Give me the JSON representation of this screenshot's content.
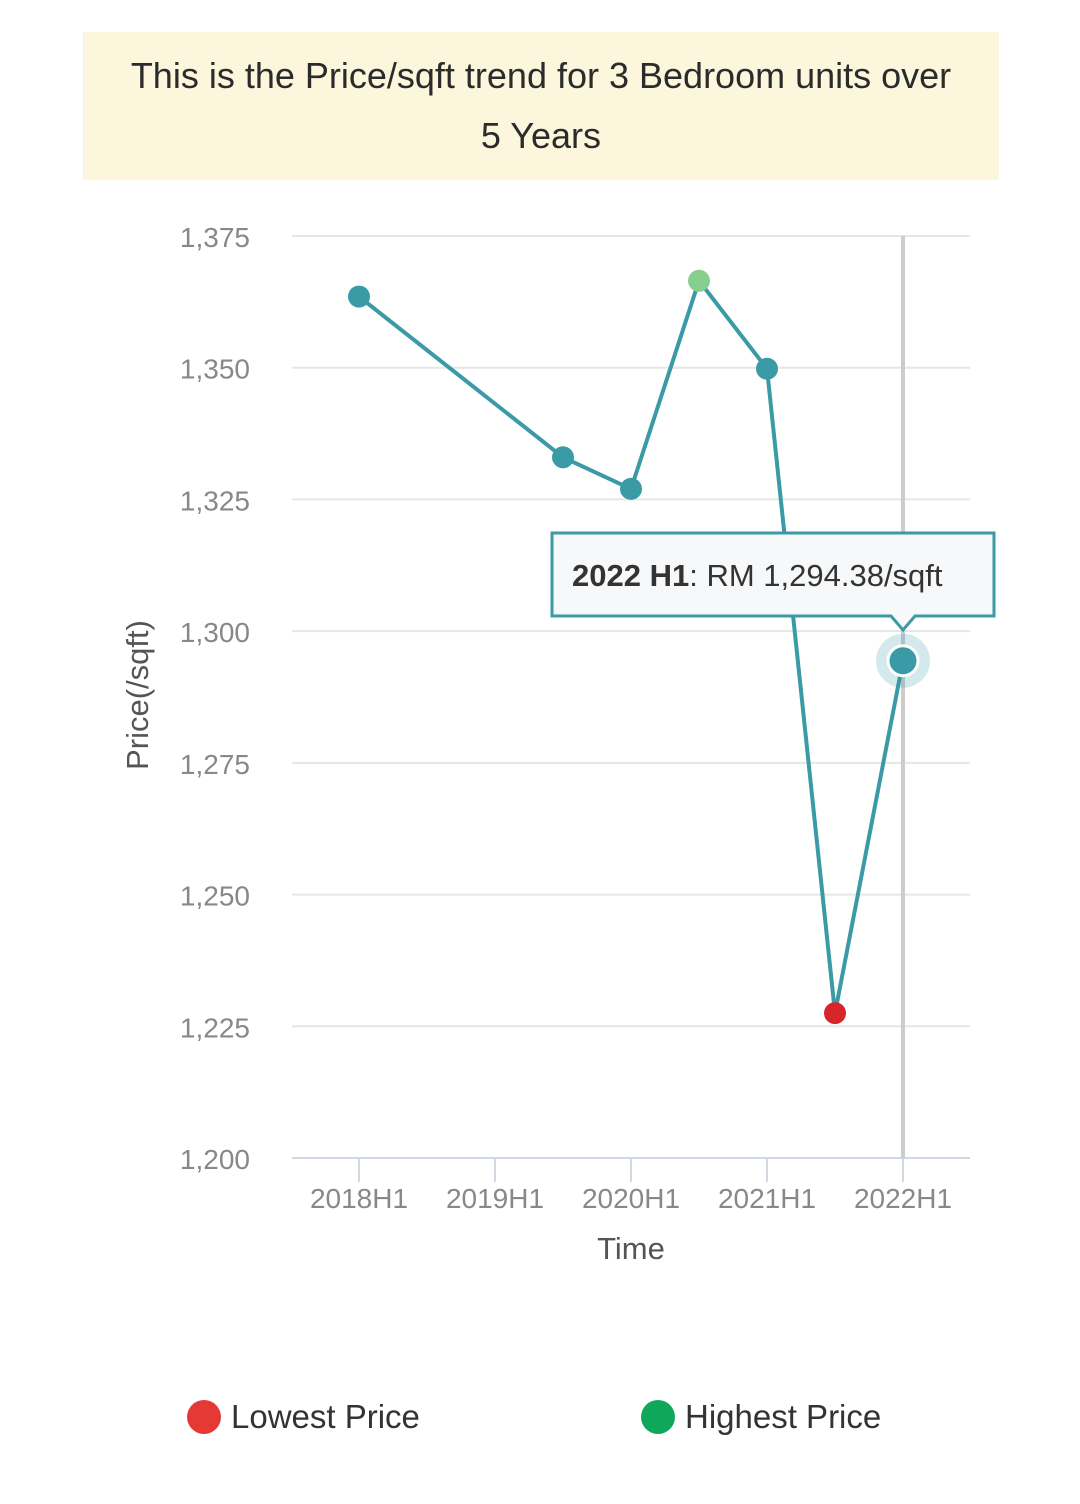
{
  "banner": {
    "line1": "This is the Price/sqft trend for 3 Bedroom units over",
    "line2": "5 Years"
  },
  "chart_data": {
    "type": "line",
    "xlabel": "Time",
    "ylabel": "Price(/sqft)",
    "ylim": [
      1200,
      1375
    ],
    "yticks": [
      1200,
      1225,
      1250,
      1275,
      1300,
      1325,
      1350,
      1375
    ],
    "ytick_labels": [
      "1,200",
      "1,225",
      "1,250",
      "1,275",
      "1,300",
      "1,325",
      "1,350",
      "1,375"
    ],
    "x_tick_labels": [
      "2018H1",
      "2019H1",
      "2020H1",
      "2021H1",
      "2022H1"
    ],
    "grid": true,
    "line_color": "#3a9aa5",
    "points": [
      {
        "period": "2018H1",
        "value": 1363.5,
        "marker": "normal"
      },
      {
        "period": "2019H2",
        "value": 1333.0,
        "marker": "normal"
      },
      {
        "period": "2020H1",
        "value": 1327.0,
        "marker": "normal"
      },
      {
        "period": "2020H2",
        "value": 1366.5,
        "marker": "highest"
      },
      {
        "period": "2021H1",
        "value": 1349.8,
        "marker": "normal"
      },
      {
        "period": "2021H2",
        "value": 1227.5,
        "marker": "lowest"
      },
      {
        "period": "2022H1",
        "value": 1294.38,
        "marker": "selected"
      }
    ],
    "tooltip": {
      "label": "2022 H1",
      "text": ": RM 1,294.38/sqft"
    }
  },
  "legend": {
    "lowest_label": "Lowest Price",
    "lowest_color": "#e53935",
    "highest_label": "Highest Price",
    "highest_color": "#0fa85a"
  },
  "colors": {
    "normal_marker": "#3a9aa5",
    "highest_marker": "#86cf8f",
    "lowest_marker": "#d7262b",
    "grid": "#e6e6e6",
    "crosshair": "#cccccc"
  }
}
